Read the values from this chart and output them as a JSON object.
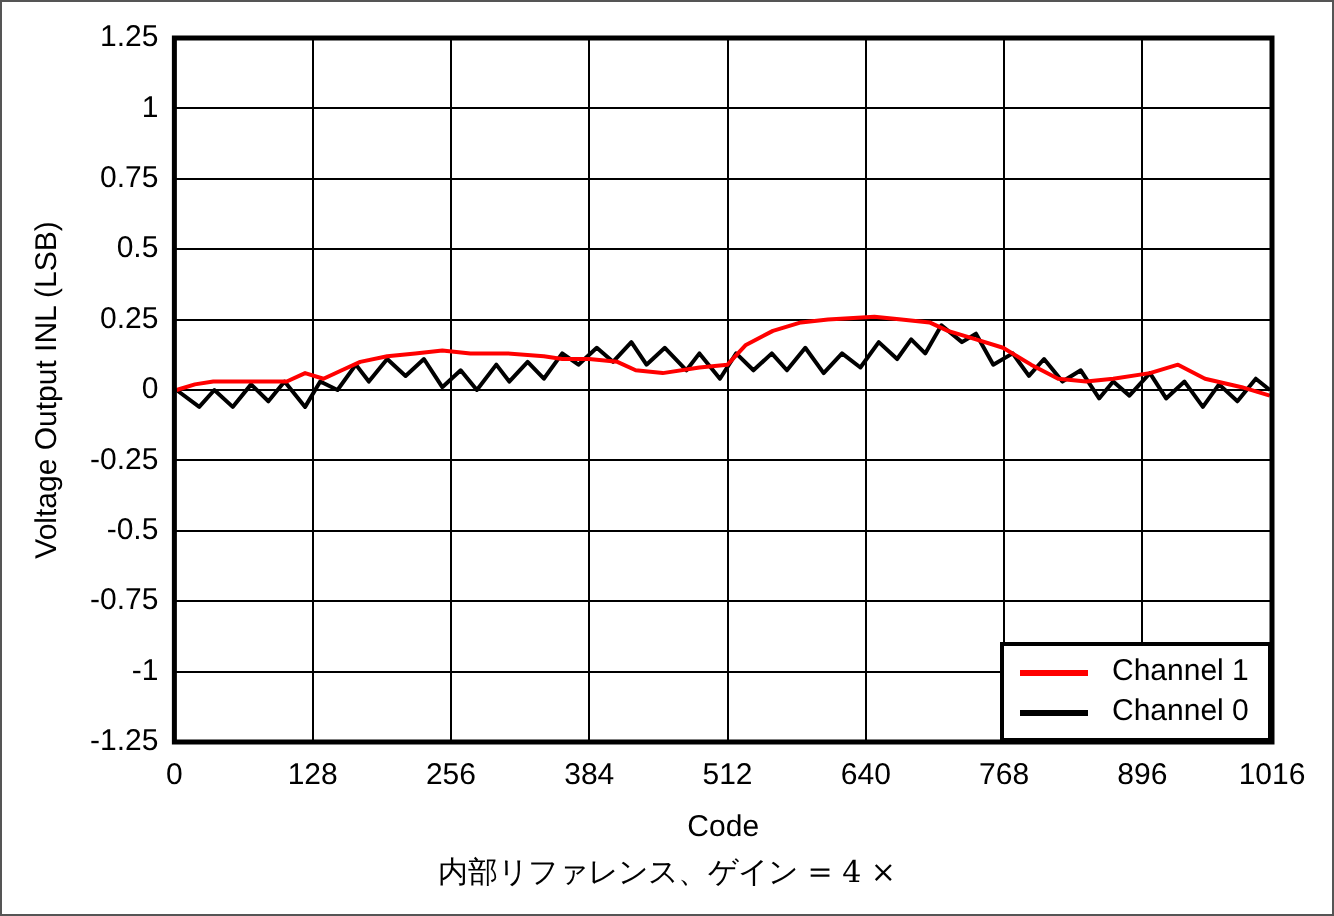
{
  "chart_data": {
    "type": "line",
    "xlabel": "Code",
    "ylabel": "Voltage Output INL (LSB)",
    "annotations": [
      "内部リファレンス、ゲイン = 4 ×"
    ],
    "xlim": [
      0,
      1016
    ],
    "xticks": [
      0,
      128,
      256,
      384,
      512,
      640,
      768,
      896,
      1016
    ],
    "ylim": [
      -1.25,
      1.25
    ],
    "yticks": [
      -1.25,
      -1,
      -0.75,
      -0.5,
      -0.25,
      0,
      0.25,
      0.5,
      0.75,
      1,
      1.25
    ],
    "grid": true,
    "legend": "bottom right",
    "marker": "none",
    "line_style": "solid",
    "series": [
      {
        "name": "Channel 1",
        "color": "#ff0000",
        "x": [
          2,
          19,
          36,
          70,
          104,
          121,
          138,
          155,
          172,
          197,
          223,
          248,
          274,
          308,
          342,
          359,
          384,
          410,
          427,
          452,
          486,
          512,
          529,
          554,
          580,
          605,
          648,
          673,
          699,
          716,
          742,
          767,
          793,
          818,
          844,
          869,
          903,
          929,
          954,
          988,
          1014
        ],
        "values": [
          0,
          0.02,
          0.03,
          0.03,
          0.03,
          0.06,
          0.04,
          0.07,
          0.1,
          0.12,
          0.13,
          0.14,
          0.13,
          0.13,
          0.12,
          0.11,
          0.11,
          0.1,
          0.07,
          0.06,
          0.08,
          0.09,
          0.16,
          0.21,
          0.24,
          0.25,
          0.26,
          0.25,
          0.24,
          0.21,
          0.18,
          0.15,
          0.09,
          0.04,
          0.03,
          0.04,
          0.06,
          0.09,
          0.04,
          0.01,
          -0.02
        ]
      },
      {
        "name": "Channel 0",
        "color": "#000000",
        "x": [
          2,
          23,
          37,
          54,
          71,
          87,
          102,
          121,
          135,
          151,
          168,
          180,
          197,
          214,
          231,
          248,
          265,
          280,
          298,
          310,
          327,
          342,
          359,
          374,
          391,
          406,
          423,
          437,
          454,
          474,
          486,
          505,
          520,
          536,
          553,
          567,
          584,
          601,
          618,
          635,
          652,
          669,
          682,
          695,
          710,
          729,
          742,
          758,
          776,
          791,
          805,
          822,
          839,
          856,
          869,
          884,
          903,
          918,
          935,
          952,
          967,
          984,
          1001,
          1014
        ],
        "values": [
          0,
          -0.06,
          0,
          -0.06,
          0.02,
          -0.04,
          0.03,
          -0.06,
          0.03,
          0,
          0.09,
          0.03,
          0.11,
          0.05,
          0.11,
          0.01,
          0.07,
          0,
          0.09,
          0.03,
          0.1,
          0.04,
          0.13,
          0.09,
          0.15,
          0.1,
          0.17,
          0.09,
          0.15,
          0.07,
          0.13,
          0.04,
          0.13,
          0.07,
          0.13,
          0.07,
          0.15,
          0.06,
          0.13,
          0.08,
          0.17,
          0.11,
          0.18,
          0.13,
          0.23,
          0.17,
          0.2,
          0.09,
          0.13,
          0.05,
          0.11,
          0.03,
          0.07,
          -0.03,
          0.03,
          -0.02,
          0.06,
          -0.03,
          0.03,
          -0.06,
          0.02,
          -0.04,
          0.04,
          0
        ]
      }
    ]
  }
}
